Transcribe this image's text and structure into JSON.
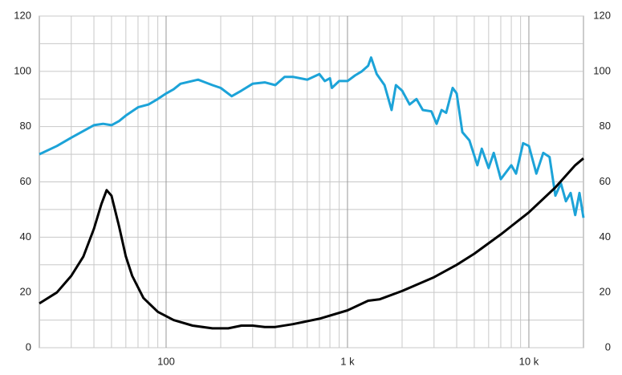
{
  "chart_data": {
    "type": "line",
    "xscale": "log",
    "xlim": [
      20,
      20000
    ],
    "ylim": [
      0,
      120
    ],
    "y2lim": [
      0,
      120
    ],
    "xticks": [
      {
        "value": 100,
        "label": "100"
      },
      {
        "value": 1000,
        "label": "1 k"
      },
      {
        "value": 10000,
        "label": "10 k"
      }
    ],
    "x_minor_ticks": [
      30,
      40,
      50,
      60,
      70,
      80,
      90,
      200,
      300,
      400,
      500,
      600,
      700,
      800,
      900,
      2000,
      3000,
      4000,
      5000,
      6000,
      7000,
      8000,
      9000
    ],
    "yticks": [
      0,
      20,
      40,
      60,
      80,
      100,
      120
    ],
    "y2ticks": [
      0,
      20,
      40,
      60,
      80,
      100,
      120
    ],
    "y_minor_ticks": [
      10,
      30,
      50,
      70,
      90,
      110
    ],
    "grid": true,
    "series": [
      {
        "color": "#1ca3d8",
        "x": [
          20,
          25,
          30,
          40,
          45,
          50,
          55,
          60,
          70,
          80,
          90,
          100,
          110,
          120,
          150,
          180,
          200,
          230,
          260,
          300,
          350,
          400,
          450,
          500,
          600,
          700,
          750,
          800,
          820,
          900,
          1000,
          1100,
          1200,
          1300,
          1350,
          1450,
          1600,
          1750,
          1850,
          2000,
          2200,
          2400,
          2600,
          2900,
          3100,
          3300,
          3500,
          3800,
          4000,
          4300,
          4700,
          5200,
          5500,
          6000,
          6400,
          7000,
          8000,
          8500,
          9300,
          10000,
          11000,
          12000,
          13000,
          14000,
          15000,
          16000,
          17000,
          18000,
          19000,
          20000
        ],
        "values": [
          70,
          73,
          76,
          80.5,
          81,
          80.5,
          82,
          84,
          87,
          88,
          90,
          92,
          93.5,
          95.5,
          97,
          95,
          94,
          91,
          93,
          95.5,
          96,
          95,
          98,
          98,
          97,
          99,
          96.5,
          97.5,
          94,
          96.5,
          96.5,
          98.5,
          100,
          102,
          105,
          99,
          95,
          86,
          95,
          93,
          88,
          90,
          86,
          85.5,
          81,
          86,
          85,
          94,
          92,
          78,
          75,
          66,
          72,
          65,
          70.5,
          61,
          66,
          63,
          74,
          73,
          63,
          70.5,
          69,
          55,
          59.5,
          53,
          56,
          48,
          56,
          47
        ]
      },
      {
        "color": "#000000",
        "x": [
          20,
          25,
          30,
          35,
          40,
          44,
          47,
          50,
          55,
          60,
          65,
          75,
          90,
          110,
          140,
          180,
          220,
          260,
          300,
          350,
          400,
          500,
          700,
          1000,
          1300,
          1500,
          2000,
          3000,
          4000,
          5000,
          7000,
          10000,
          14000,
          18000,
          20000
        ],
        "values": [
          16,
          20,
          26,
          33,
          43,
          52,
          57,
          55,
          44,
          33,
          26,
          18,
          13,
          10,
          8,
          7,
          7,
          8,
          8,
          7.5,
          7.5,
          8.5,
          10.5,
          13.5,
          17,
          17.5,
          20.5,
          25.5,
          30,
          34,
          41,
          49,
          58,
          66,
          68.5
        ]
      }
    ]
  }
}
